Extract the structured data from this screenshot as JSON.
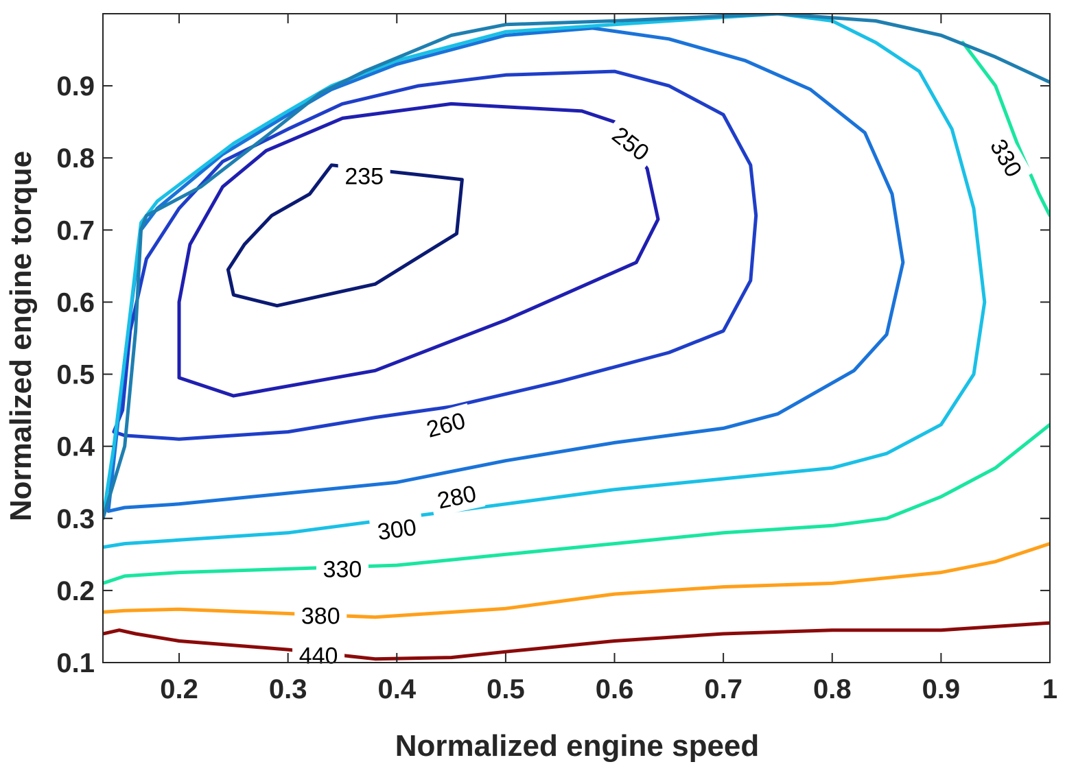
{
  "chart_data": {
    "type": "contour",
    "title": "",
    "xlabel": "Normalized engine speed",
    "ylabel": "Normalized engine torque",
    "xlim": [
      0.13,
      1.0
    ],
    "ylim": [
      0.1,
      1.0
    ],
    "x_ticks": [
      {
        "v": 0.2,
        "label": "0.2"
      },
      {
        "v": 0.3,
        "label": "0.3"
      },
      {
        "v": 0.4,
        "label": "0.4"
      },
      {
        "v": 0.5,
        "label": "0.5"
      },
      {
        "v": 0.6,
        "label": "0.6"
      },
      {
        "v": 0.7,
        "label": "0.7"
      },
      {
        "v": 0.8,
        "label": "0.8"
      },
      {
        "v": 0.9,
        "label": "0.9"
      },
      {
        "v": 1.0,
        "label": "1"
      }
    ],
    "y_ticks": [
      {
        "v": 0.1,
        "label": "0.1"
      },
      {
        "v": 0.2,
        "label": "0.2"
      },
      {
        "v": 0.3,
        "label": "0.3"
      },
      {
        "v": 0.4,
        "label": "0.4"
      },
      {
        "v": 0.5,
        "label": "0.5"
      },
      {
        "v": 0.6,
        "label": "0.6"
      },
      {
        "v": 0.7,
        "label": "0.7"
      },
      {
        "v": 0.8,
        "label": "0.8"
      },
      {
        "v": 0.9,
        "label": "0.9"
      }
    ],
    "grid": false,
    "levels": [
      {
        "level": "235",
        "color": "#0b1a72",
        "closed": true,
        "points": [
          [
            0.34,
            0.79
          ],
          [
            0.43,
            0.775
          ],
          [
            0.46,
            0.77
          ],
          [
            0.455,
            0.695
          ],
          [
            0.38,
            0.625
          ],
          [
            0.29,
            0.595
          ],
          [
            0.25,
            0.61
          ],
          [
            0.245,
            0.645
          ],
          [
            0.26,
            0.68
          ],
          [
            0.285,
            0.72
          ],
          [
            0.32,
            0.75
          ],
          [
            0.34,
            0.79
          ]
        ],
        "labels": [
          {
            "x": 0.37,
            "y": 0.775,
            "text": "235",
            "angle": 0
          }
        ]
      },
      {
        "level": "250",
        "color": "#1f1fb0",
        "closed": true,
        "points": [
          [
            0.57,
            0.865
          ],
          [
            0.6,
            0.85
          ],
          [
            0.63,
            0.785
          ],
          [
            0.64,
            0.715
          ],
          [
            0.62,
            0.655
          ],
          [
            0.5,
            0.575
          ],
          [
            0.38,
            0.505
          ],
          [
            0.25,
            0.47
          ],
          [
            0.2,
            0.495
          ],
          [
            0.2,
            0.54
          ],
          [
            0.2,
            0.6
          ],
          [
            0.21,
            0.68
          ],
          [
            0.24,
            0.76
          ],
          [
            0.28,
            0.81
          ],
          [
            0.35,
            0.855
          ],
          [
            0.45,
            0.875
          ],
          [
            0.57,
            0.865
          ]
        ],
        "labels": [
          {
            "x": 0.615,
            "y": 0.82,
            "text": "250",
            "angle": 38
          }
        ]
      },
      {
        "level": "260",
        "color": "#1f3ec8",
        "closed": false,
        "points": [
          [
            0.14,
            0.42
          ],
          [
            0.15,
            0.415
          ],
          [
            0.2,
            0.41
          ],
          [
            0.3,
            0.42
          ],
          [
            0.38,
            0.44
          ],
          [
            0.45,
            0.455
          ],
          [
            0.55,
            0.49
          ],
          [
            0.65,
            0.53
          ],
          [
            0.7,
            0.56
          ],
          [
            0.725,
            0.63
          ],
          [
            0.73,
            0.72
          ],
          [
            0.725,
            0.79
          ],
          [
            0.7,
            0.86
          ],
          [
            0.65,
            0.9
          ],
          [
            0.6,
            0.92
          ],
          [
            0.5,
            0.915
          ],
          [
            0.42,
            0.9
          ],
          [
            0.35,
            0.875
          ],
          [
            0.3,
            0.84
          ],
          [
            0.24,
            0.795
          ],
          [
            0.2,
            0.73
          ],
          [
            0.17,
            0.66
          ],
          [
            0.155,
            0.56
          ],
          [
            0.148,
            0.45
          ],
          [
            0.14,
            0.42
          ]
        ],
        "labels": [
          {
            "x": 0.445,
            "y": 0.43,
            "text": "260",
            "angle": -15
          }
        ]
      },
      {
        "level": "280",
        "color": "#1a73d9",
        "closed": false,
        "points": [
          [
            0.135,
            0.31
          ],
          [
            0.15,
            0.315
          ],
          [
            0.2,
            0.32
          ],
          [
            0.3,
            0.335
          ],
          [
            0.4,
            0.35
          ],
          [
            0.5,
            0.38
          ],
          [
            0.6,
            0.405
          ],
          [
            0.7,
            0.425
          ],
          [
            0.75,
            0.445
          ],
          [
            0.82,
            0.505
          ],
          [
            0.85,
            0.555
          ],
          [
            0.865,
            0.655
          ],
          [
            0.855,
            0.75
          ],
          [
            0.83,
            0.835
          ],
          [
            0.78,
            0.895
          ],
          [
            0.72,
            0.935
          ],
          [
            0.65,
            0.965
          ],
          [
            0.58,
            0.98
          ],
          [
            0.5,
            0.97
          ],
          [
            0.4,
            0.93
          ],
          [
            0.34,
            0.895
          ],
          [
            0.3,
            0.86
          ],
          [
            0.24,
            0.805
          ],
          [
            0.18,
            0.73
          ],
          [
            0.165,
            0.7
          ],
          [
            0.15,
            0.52
          ],
          [
            0.14,
            0.38
          ],
          [
            0.135,
            0.31
          ]
        ],
        "labels": [
          {
            "x": 0.455,
            "y": 0.33,
            "text": "280",
            "angle": -12
          }
        ]
      },
      {
        "level": "300",
        "color": "#1ac0e6",
        "closed": false,
        "points": [
          [
            0.13,
            0.26
          ],
          [
            0.15,
            0.265
          ],
          [
            0.2,
            0.27
          ],
          [
            0.3,
            0.28
          ],
          [
            0.4,
            0.3
          ],
          [
            0.5,
            0.32
          ],
          [
            0.6,
            0.34
          ],
          [
            0.7,
            0.355
          ],
          [
            0.8,
            0.37
          ],
          [
            0.85,
            0.39
          ],
          [
            0.9,
            0.43
          ],
          [
            0.93,
            0.5
          ],
          [
            0.94,
            0.6
          ],
          [
            0.93,
            0.73
          ],
          [
            0.91,
            0.84
          ],
          [
            0.88,
            0.92
          ],
          [
            0.84,
            0.96
          ],
          [
            0.8,
            0.99
          ],
          [
            0.75,
            1.0
          ],
          [
            0.6,
            0.985
          ],
          [
            0.5,
            0.975
          ],
          [
            0.4,
            0.935
          ],
          [
            0.34,
            0.9
          ],
          [
            0.3,
            0.865
          ],
          [
            0.25,
            0.82
          ],
          [
            0.18,
            0.74
          ],
          [
            0.165,
            0.71
          ],
          [
            0.15,
            0.52
          ],
          [
            0.14,
            0.4
          ],
          [
            0.13,
            0.3
          ]
        ],
        "labels": [
          {
            "x": 0.4,
            "y": 0.285,
            "text": "300",
            "angle": -8
          }
        ]
      },
      {
        "level": "330",
        "color": "#1ae6a0",
        "closed": false,
        "points": [
          [
            0.13,
            0.21
          ],
          [
            0.15,
            0.22
          ],
          [
            0.2,
            0.225
          ],
          [
            0.3,
            0.23
          ],
          [
            0.4,
            0.235
          ],
          [
            0.5,
            0.25
          ],
          [
            0.6,
            0.265
          ],
          [
            0.7,
            0.28
          ],
          [
            0.8,
            0.29
          ],
          [
            0.85,
            0.3
          ],
          [
            0.9,
            0.33
          ],
          [
            0.95,
            0.37
          ],
          [
            1.0,
            0.43
          ]
        ],
        "labels": [
          {
            "x": 0.35,
            "y": 0.23,
            "text": "330",
            "angle": 0
          }
        ]
      },
      {
        "level": "330",
        "color": "#1ae6a0",
        "closed": false,
        "points": [
          [
            0.92,
            0.96
          ],
          [
            0.95,
            0.9
          ],
          [
            0.97,
            0.82
          ],
          [
            0.99,
            0.75
          ],
          [
            1.0,
            0.72
          ]
        ],
        "labels": [
          {
            "x": 0.96,
            "y": 0.8,
            "text": "330",
            "angle": 60
          }
        ]
      },
      {
        "level": "380",
        "color": "#ffa01a",
        "closed": false,
        "points": [
          [
            0.13,
            0.17
          ],
          [
            0.15,
            0.172
          ],
          [
            0.2,
            0.174
          ],
          [
            0.3,
            0.168
          ],
          [
            0.38,
            0.163
          ],
          [
            0.5,
            0.175
          ],
          [
            0.6,
            0.195
          ],
          [
            0.7,
            0.205
          ],
          [
            0.8,
            0.21
          ],
          [
            0.9,
            0.225
          ],
          [
            0.95,
            0.24
          ],
          [
            1.0,
            0.265
          ]
        ],
        "labels": [
          {
            "x": 0.33,
            "y": 0.165,
            "text": "380",
            "angle": 0
          }
        ]
      },
      {
        "level": "440",
        "color": "#8b0a0a",
        "closed": false,
        "points": [
          [
            0.13,
            0.14
          ],
          [
            0.145,
            0.145
          ],
          [
            0.16,
            0.14
          ],
          [
            0.2,
            0.13
          ],
          [
            0.3,
            0.118
          ],
          [
            0.38,
            0.105
          ],
          [
            0.45,
            0.107
          ],
          [
            0.5,
            0.115
          ],
          [
            0.6,
            0.13
          ],
          [
            0.7,
            0.14
          ],
          [
            0.8,
            0.145
          ],
          [
            0.9,
            0.145
          ],
          [
            1.0,
            0.155
          ]
        ],
        "labels": [
          {
            "x": 0.328,
            "y": 0.11,
            "text": "440",
            "angle": 0
          }
        ]
      },
      {
        "level": "",
        "color": "#1e7fb0",
        "closed": false,
        "points": [
          [
            0.13,
            0.3
          ],
          [
            0.15,
            0.4
          ],
          [
            0.16,
            0.56
          ],
          [
            0.165,
            0.7
          ],
          [
            0.17,
            0.72
          ],
          [
            0.22,
            0.76
          ],
          [
            0.28,
            0.83
          ],
          [
            0.33,
            0.89
          ],
          [
            0.37,
            0.92
          ],
          [
            0.45,
            0.97
          ],
          [
            0.5,
            0.985
          ],
          [
            0.6,
            0.99
          ],
          [
            0.75,
            1.0
          ],
          [
            0.84,
            0.99
          ],
          [
            0.9,
            0.97
          ],
          [
            0.95,
            0.94
          ],
          [
            1.0,
            0.905
          ]
        ],
        "labels": []
      }
    ]
  }
}
